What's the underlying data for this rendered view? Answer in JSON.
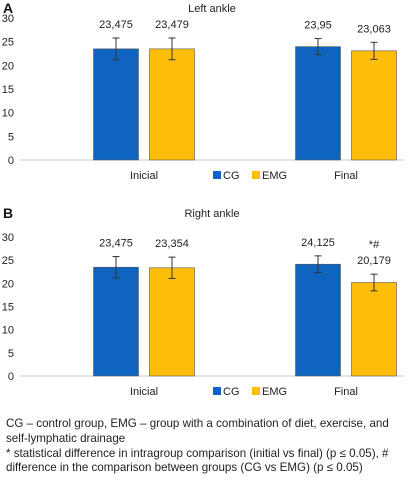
{
  "chart_data": [
    {
      "type": "bar",
      "panel_letter": "A",
      "title": "Left ankle",
      "categories": [
        "Inicial",
        "Final"
      ],
      "series": [
        {
          "name": "CG",
          "color": "#0f64c0",
          "values": [
            23.475,
            23.95
          ],
          "errors": [
            2.3,
            1.7
          ],
          "labels": [
            "23,475",
            "23,95"
          ]
        },
        {
          "name": "EMG",
          "color": "#fdbd09",
          "values": [
            23.479,
            23.063
          ],
          "errors": [
            2.3,
            1.8
          ],
          "labels": [
            "23,479",
            "23,063"
          ]
        }
      ],
      "annotations": [],
      "ylim": [
        0,
        30
      ],
      "yticks": [
        0,
        5,
        10,
        15,
        20,
        25,
        30
      ],
      "xlabel": "",
      "ylabel": "",
      "grid": false,
      "legend": "bottom-center"
    },
    {
      "type": "bar",
      "panel_letter": "B",
      "title": "Right ankle",
      "categories": [
        "Inicial",
        "Final"
      ],
      "series": [
        {
          "name": "CG",
          "color": "#0f64c0",
          "values": [
            23.475,
            24.125
          ],
          "errors": [
            2.3,
            1.8
          ],
          "labels": [
            "23,475",
            "24,125"
          ]
        },
        {
          "name": "EMG",
          "color": "#fdbd09",
          "values": [
            23.354,
            20.179
          ],
          "errors": [
            2.3,
            1.8
          ],
          "labels": [
            "23,354",
            "20,179"
          ]
        }
      ],
      "annotations": [
        {
          "series": 1,
          "category": 1,
          "text": "*#"
        }
      ],
      "ylim": [
        0,
        30
      ],
      "yticks": [
        0,
        5,
        10,
        15,
        20,
        25,
        30
      ],
      "xlabel": "",
      "ylabel": "",
      "grid": false,
      "legend": "bottom-center"
    }
  ],
  "caption": {
    "line1": "CG – control group, EMG – group with a combination of diet, exercise, and self-lymphatic drainage",
    "line2": "* statistical difference in intragroup comparison (initial vs final) (p ≤ 0.05), # difference in the comparison between groups (CG vs EMG) (p ≤ 0.05)"
  }
}
